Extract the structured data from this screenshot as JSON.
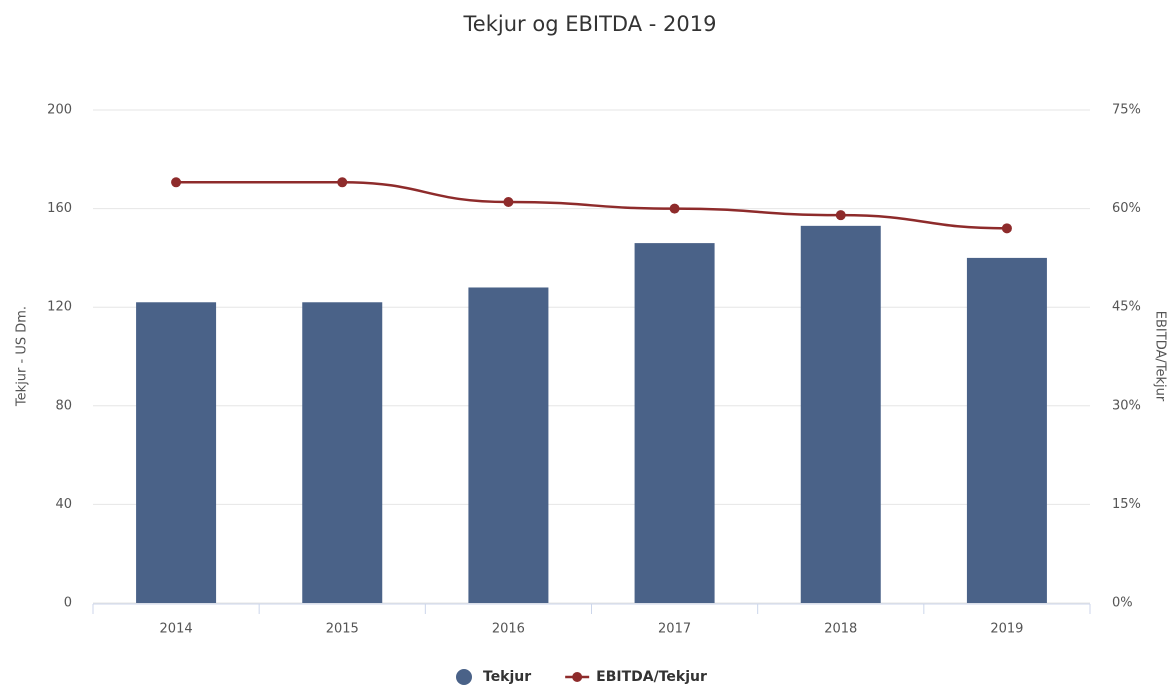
{
  "chart_data": {
    "type": "bar",
    "title": "Tekjur og EBITDA - 2019",
    "categories": [
      "2014",
      "2015",
      "2016",
      "2017",
      "2018",
      "2019"
    ],
    "series": [
      {
        "name": "Tekjur",
        "type": "bar",
        "color": "#4a6288",
        "values": [
          122,
          122,
          128,
          146,
          153,
          140
        ]
      },
      {
        "name": "EBITDA/Tekjur",
        "type": "line",
        "axis": "y2",
        "color": "#8e2b2b",
        "values": [
          64,
          64,
          61,
          60,
          59,
          57
        ]
      }
    ],
    "ylabel": "Tekjur - US Dm.",
    "y2label": "EBITDA/Tekjur",
    "ylim": [
      0,
      200
    ],
    "yticks": [
      0,
      40,
      80,
      120,
      160,
      200
    ],
    "y2lim": [
      0,
      75
    ],
    "y2ticks": [
      {
        "value": 0,
        "label": "0%"
      },
      {
        "value": 15,
        "label": "15%"
      },
      {
        "value": 30,
        "label": "30%"
      },
      {
        "value": 45,
        "label": "45%"
      },
      {
        "value": 60,
        "label": "60%"
      },
      {
        "value": 75,
        "label": "75%"
      }
    ],
    "grid": true,
    "legend": "bottom"
  }
}
